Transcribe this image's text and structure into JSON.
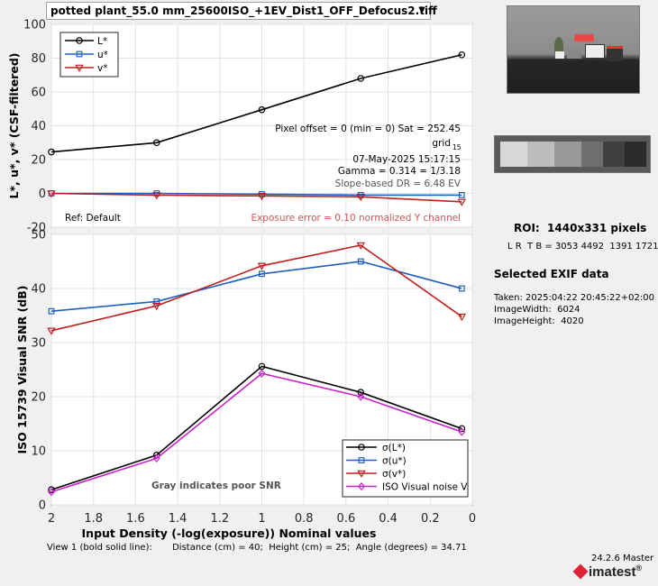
{
  "file_select": {
    "value": "potted plant_55.0 mm_25600ISO_+1EV_Dist1_OFF_Defocus2.tiff"
  },
  "side": {
    "roi": "ROI:  1440x331 pixels",
    "roi_coords": "L R  T B = 3053 4492  1391 1721",
    "exif_title": "Selected EXIF data",
    "taken": "Taken: 2025:04:22 20:45:22+02:00",
    "image_width": "ImageWidth:  6024",
    "image_height": "ImageHeight:  4020"
  },
  "footer": {
    "view": "View 1 (bold solid line):       Distance (cm) = 40;  Height (cm) = 25;  Angle (degrees) = 34.71",
    "version": "24.2.6 Master",
    "logo": "imatest"
  },
  "colors": {
    "L": "#000000",
    "u": "#1f5fbf",
    "v": "#bf1f1f",
    "iso": "#cc22cc",
    "exposure_error": "#cc5555",
    "dr": "#555555"
  },
  "chart_data": [
    {
      "type": "line",
      "ylabel": "L*, u*, v* (CSF-filtered)",
      "xlim": [
        2,
        0
      ],
      "ylim": [
        -20,
        100
      ],
      "yticks": [
        -20,
        0,
        20,
        40,
        60,
        80,
        100
      ],
      "grid": true,
      "legend_placement": "top-left",
      "x": [
        2.0,
        1.5,
        1.0,
        0.53,
        0.05
      ],
      "series": [
        {
          "name": "L*",
          "marker": "circle",
          "color": "#000000",
          "values": [
            24.5,
            30,
            49.5,
            68,
            82
          ]
        },
        {
          "name": "u*",
          "marker": "square",
          "color": "#1f5fbf",
          "values": [
            0,
            0,
            -0.5,
            -1,
            -1
          ]
        },
        {
          "name": "v*",
          "marker": "triangle-down",
          "color": "#bf1f1f",
          "values": [
            0,
            -1,
            -1.5,
            -2,
            -5
          ]
        }
      ],
      "annotations": {
        "pixel_offset": "Pixel offset = 0  (min = 0)  Sat = 252.45",
        "grid": "grid",
        "grid_sub": "15",
        "date": "07-May-2025 15:17:15",
        "gamma": "Gamma = 0.314 = 1/3.18",
        "slope_dr": "Slope-based DR = 6.48 EV",
        "ref": "Ref: Default",
        "exposure_error": "Exposure error = 0.10 normalized Y channel"
      }
    },
    {
      "type": "line",
      "ylabel": "ISO 15739 Visual SNR (dB)",
      "xlabel": "Input Density (-log(exposure))   Nominal values",
      "xlim": [
        2,
        0
      ],
      "ylim": [
        0,
        50
      ],
      "yticks": [
        0,
        10,
        20,
        30,
        40,
        50
      ],
      "xticks": [
        2,
        1.8,
        1.6,
        1.4,
        1.2,
        1,
        0.8,
        0.6,
        0.4,
        0.2,
        0
      ],
      "grid": true,
      "legend_placement": "bottom-right",
      "x": [
        2.0,
        1.5,
        1.0,
        0.53,
        0.05
      ],
      "series": [
        {
          "name": "σ(L*)",
          "marker": "circle",
          "color": "#000000",
          "values": [
            2.8,
            9.2,
            25.6,
            20.8,
            14.1
          ]
        },
        {
          "name": "σ(u*)",
          "marker": "square",
          "color": "#1f5fbf",
          "values": [
            35.8,
            37.6,
            42.7,
            45,
            40
          ]
        },
        {
          "name": "σ(v*)",
          "marker": "triangle-down",
          "color": "#bf1f1f",
          "values": [
            32.2,
            36.8,
            44.2,
            48,
            34.8
          ]
        },
        {
          "name": "ISO Visual noise V",
          "marker": "diamond",
          "color": "#cc22cc",
          "values": [
            2.4,
            8.6,
            24.3,
            20,
            13.5
          ]
        }
      ],
      "annotations": {
        "gray_note": "Gray indicates poor SNR"
      }
    }
  ]
}
